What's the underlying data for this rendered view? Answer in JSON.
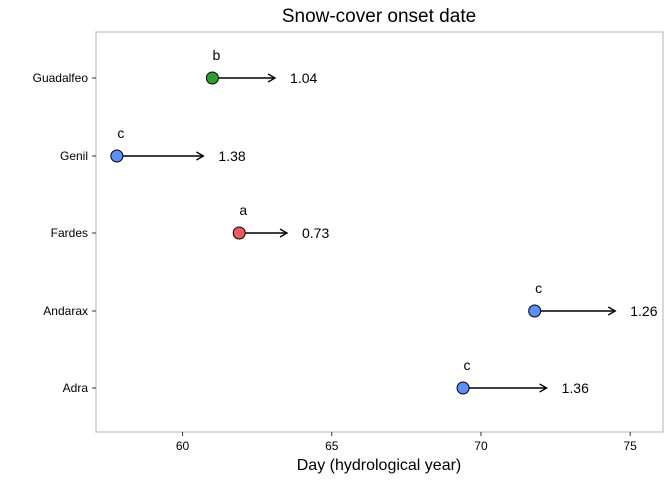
{
  "chart_data": {
    "type": "scatter",
    "title": "Snow-cover onset date",
    "xlabel": "Day (hydrological year)",
    "ylabel": "",
    "xlim": [
      57.1,
      76.1
    ],
    "xticks": [
      60,
      65,
      70,
      75
    ],
    "grid": false,
    "legend": "none",
    "categories": [
      "Guadalfeo",
      "Genil",
      "Fardes",
      "Andarax",
      "Adra"
    ],
    "points": [
      {
        "basin": "Guadalfeo",
        "start": 61.0,
        "end": 63.1,
        "value_label": "1.04",
        "group": "b",
        "color": "#2ca02c"
      },
      {
        "basin": "Genil",
        "start": 57.8,
        "end": 60.7,
        "value_label": "1.38",
        "group": "c",
        "color": "#5b8ff9"
      },
      {
        "basin": "Fardes",
        "start": 61.9,
        "end": 63.5,
        "value_label": "0.73",
        "group": "a",
        "color": "#ef5b5b"
      },
      {
        "basin": "Andarax",
        "start": 71.8,
        "end": 74.5,
        "value_label": "1.26",
        "group": "c",
        "color": "#5b8ff9"
      },
      {
        "basin": "Adra",
        "start": 69.4,
        "end": 72.2,
        "value_label": "1.36",
        "group": "c",
        "color": "#5b8ff9"
      }
    ]
  }
}
